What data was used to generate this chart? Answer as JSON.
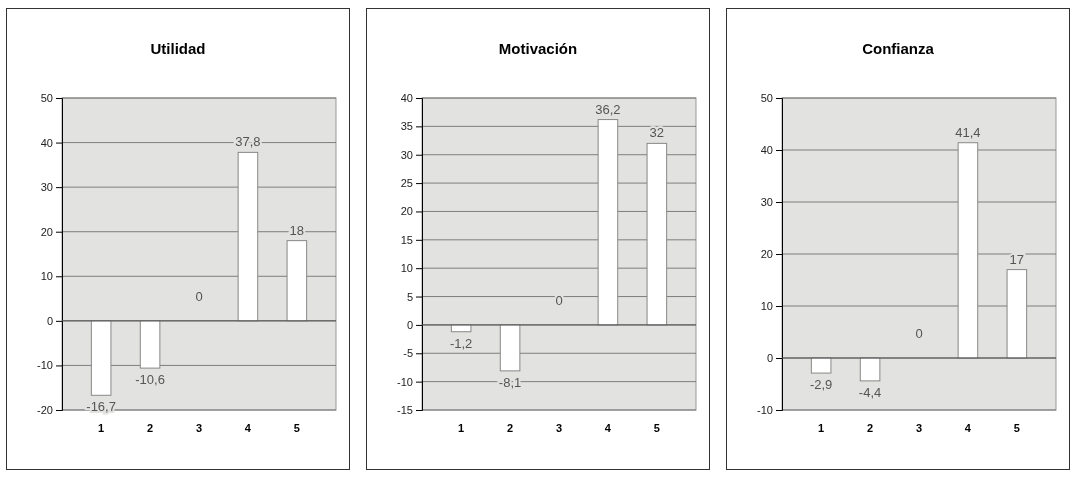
{
  "chart_data": [
    {
      "type": "bar",
      "title": "Utilidad",
      "categories": [
        "1",
        "2",
        "3",
        "4",
        "5"
      ],
      "values": [
        -16.7,
        -10.6,
        0,
        37.8,
        18
      ],
      "value_labels": [
        "-16,7",
        "-10,6",
        "0",
        "37,8",
        "18"
      ],
      "color": "#ffffff",
      "ylim": [
        -20,
        50
      ],
      "yticks": [
        -20,
        -10,
        0,
        10,
        20,
        30,
        40,
        50
      ],
      "grid": "y"
    },
    {
      "type": "bar",
      "title": "Motivación",
      "categories": [
        "1",
        "2",
        "3",
        "4",
        "5"
      ],
      "values": [
        -1.2,
        -8.1,
        0,
        36.2,
        32
      ],
      "value_labels": [
        "-1,2",
        "-8,1",
        "0",
        "36,2",
        "32"
      ],
      "color": "#ffffff",
      "ylim": [
        -15,
        40
      ],
      "yticks": [
        -15,
        -10,
        -5,
        0,
        5,
        10,
        15,
        20,
        25,
        30,
        35,
        40
      ],
      "grid": "y"
    },
    {
      "type": "bar",
      "title": "Confianza",
      "categories": [
        "1",
        "2",
        "3",
        "4",
        "5"
      ],
      "values": [
        -2.9,
        -4.4,
        0,
        41.4,
        17
      ],
      "value_labels": [
        "-2,9",
        "-4,4",
        "0",
        "41,4",
        "17"
      ],
      "color": "#ffffff",
      "ylim": [
        -10,
        50
      ],
      "yticks": [
        -10,
        0,
        10,
        20,
        30,
        40,
        50
      ],
      "grid": "y"
    }
  ]
}
